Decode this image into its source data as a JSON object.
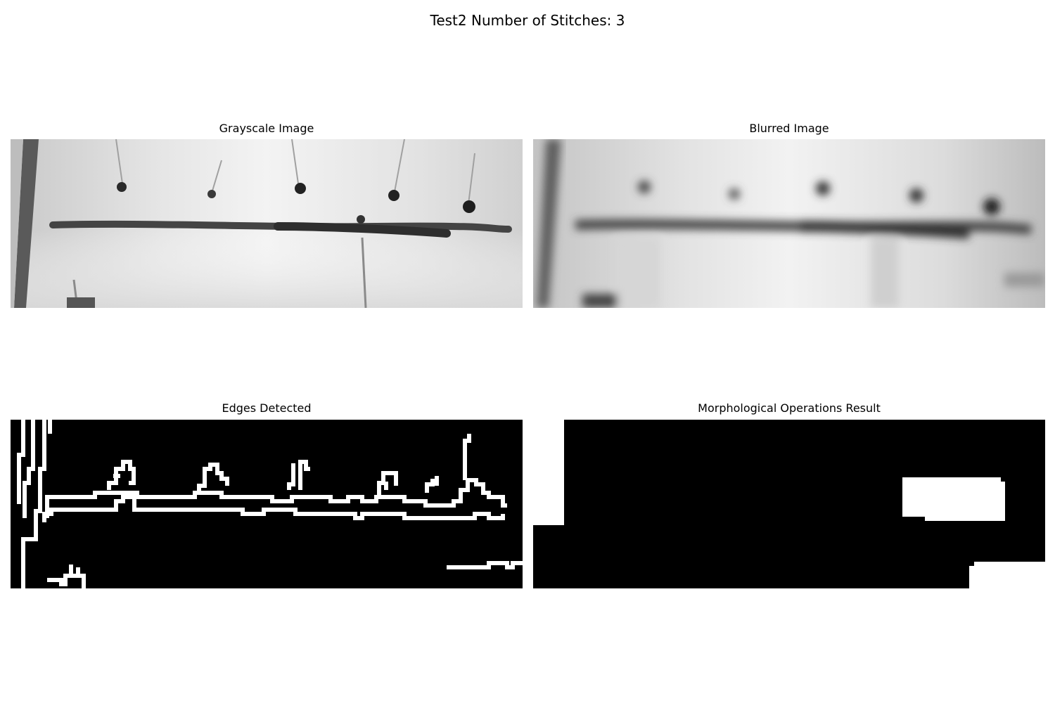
{
  "figure": {
    "suptitle": "Test2 Number of Stitches: 3"
  },
  "panels": [
    {
      "title": "Grayscale Image"
    },
    {
      "title": "Blurred Image"
    },
    {
      "title": "Edges Detected"
    },
    {
      "title": "Morphological Operations Result"
    }
  ]
}
